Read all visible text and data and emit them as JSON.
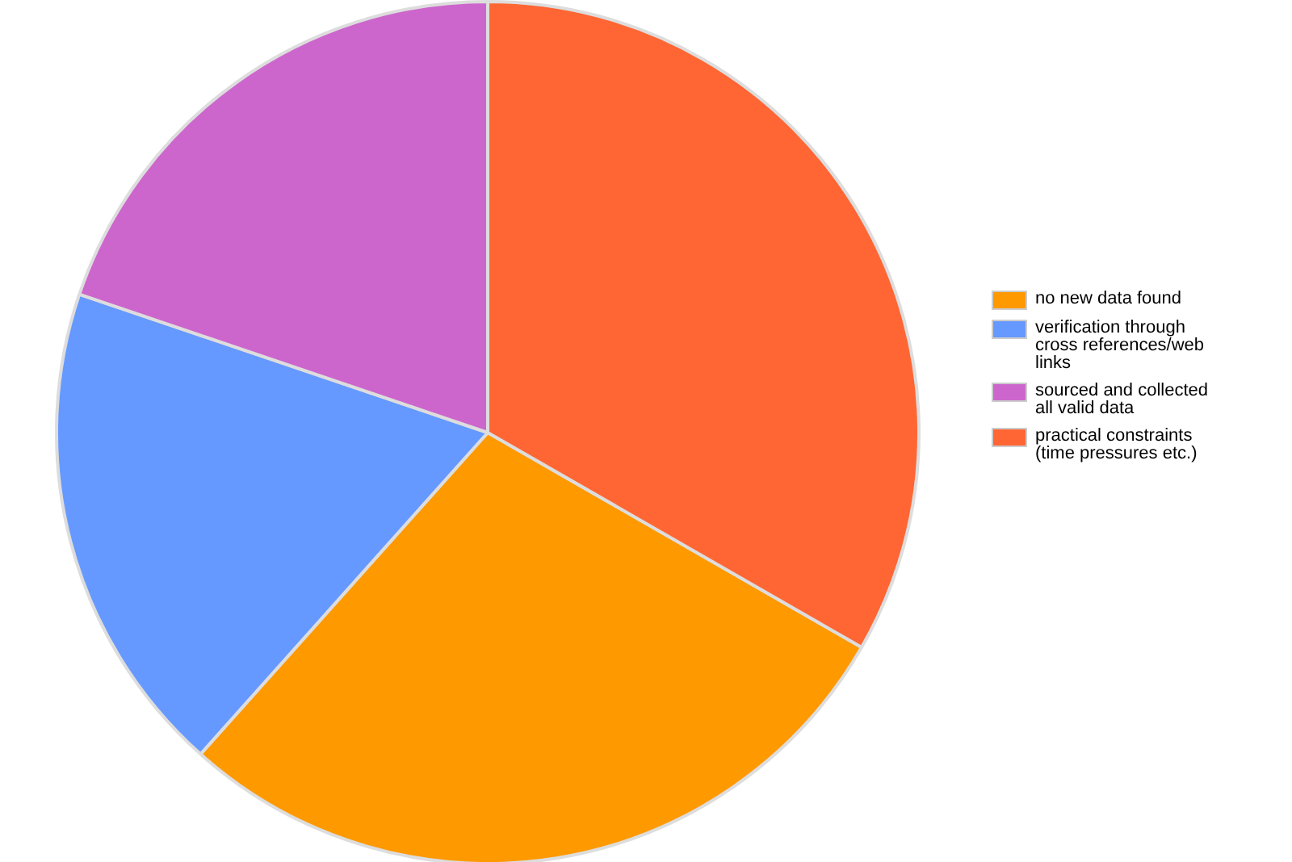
{
  "chart_data": {
    "type": "pie",
    "categories": [
      "no new data found",
      "verification through cross references/web links",
      "sourced and collected all valid data",
      "practical constraints (time pressures etc.)"
    ],
    "values": [
      28.3,
      18.6,
      19.8,
      33.3
    ],
    "colors": [
      "#ff9900",
      "#6699ff",
      "#cc66cc",
      "#ff6633"
    ],
    "legend": "right"
  }
}
